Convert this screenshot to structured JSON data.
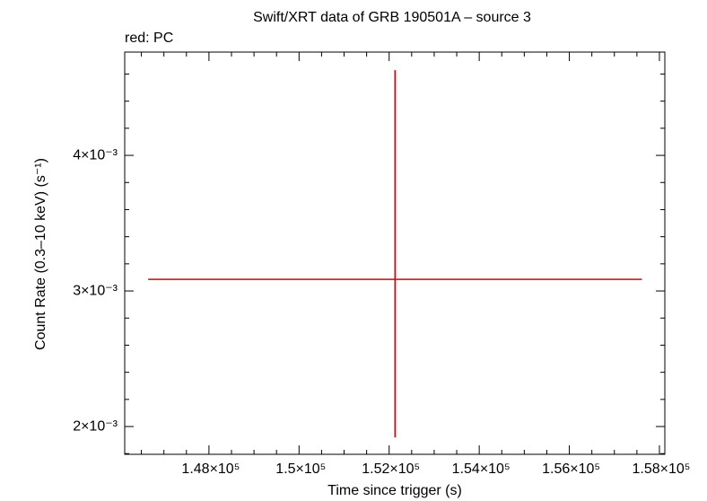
{
  "chart_data": {
    "type": "errorbar",
    "title": "Swift/XRT data of GRB 190501A – source 3",
    "subtitle": "red: PC",
    "xlabel": "Time since trigger (s)",
    "ylabel": "Count Rate (0.3–10 keV) (s⁻¹)",
    "x": [
      152130
    ],
    "xerr": [
      5480
    ],
    "values": [
      0.003086
    ],
    "yerr_minus": [
      0.001165
    ],
    "yerr_plus": [
      0.001543
    ],
    "color": "#e00000",
    "xlim": [
      146130,
      158120
    ],
    "xticks": [
      {
        "value": 148000,
        "label": "1.48×10⁵"
      },
      {
        "value": 150000,
        "label": "1.5×10⁵"
      },
      {
        "value": 152000,
        "label": "1.52×10⁵"
      },
      {
        "value": 154000,
        "label": "1.54×10⁵"
      },
      {
        "value": 156000,
        "label": "1.56×10⁵"
      },
      {
        "value": 158000,
        "label": "1.58×10⁵"
      }
    ],
    "ylim": [
      0.001795,
      0.004762
    ],
    "yticks": [
      {
        "value": 0.002,
        "label": "2×10⁻³"
      },
      {
        "value": 0.003,
        "label": "3×10⁻³"
      },
      {
        "value": 0.004,
        "label": "4×10⁻³"
      }
    ]
  }
}
